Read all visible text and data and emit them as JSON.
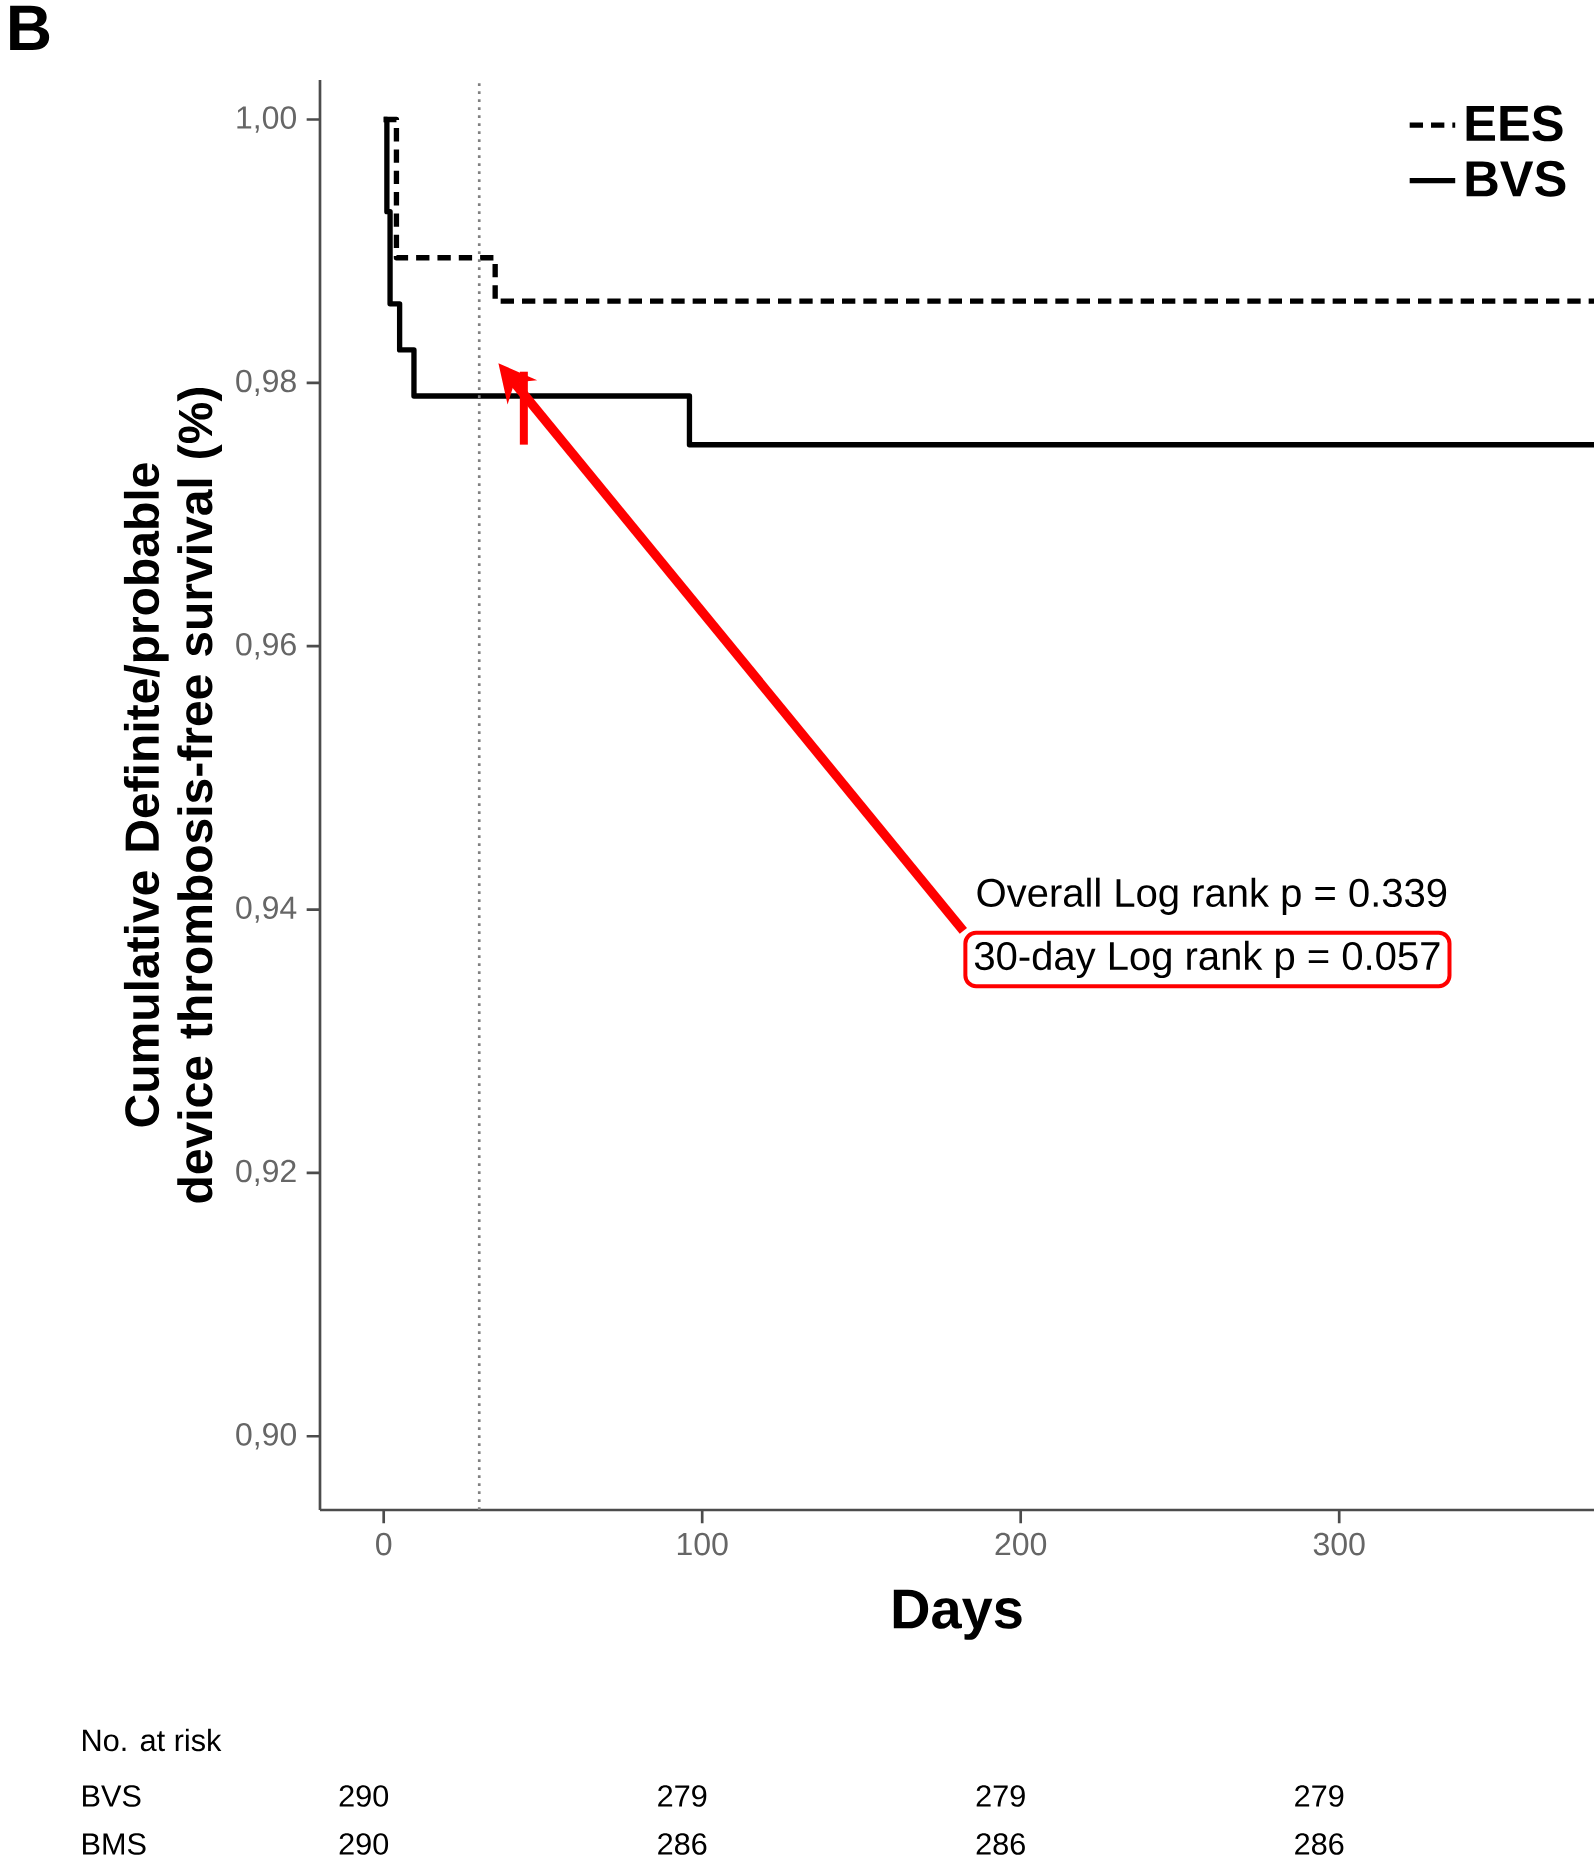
{
  "chart_data": {
    "type": "step",
    "title": "B",
    "xlabel": "Days",
    "ylabel": "Cumulative Definite/probable device thrombosis-free survival (%)",
    "series": [
      {
        "name": "EES",
        "color": "#000000",
        "line_style": "dashed",
        "x": [
          0,
          4,
          35,
          380
        ],
        "values": [
          1.0,
          0.9895,
          0.9862,
          0.9862
        ]
      },
      {
        "name": "BVS",
        "color": "#000000",
        "line_style": "solid",
        "x": [
          0,
          1,
          2,
          5,
          9.5,
          96,
          380
        ],
        "values": [
          1.0,
          0.993,
          0.986,
          0.9825,
          0.979,
          0.9753,
          0.9753
        ]
      }
    ],
    "xlim": [
      -20,
      380
    ],
    "ylim": [
      0.8944,
      1.003
    ],
    "xticks": [
      0,
      100,
      200,
      300
    ],
    "yticks": [
      {
        "value": 0.9,
        "label": "0,90"
      },
      {
        "value": 0.92,
        "label": "0,92"
      },
      {
        "value": 0.94,
        "label": "0,94"
      },
      {
        "value": 0.96,
        "label": "0,96"
      },
      {
        "value": 0.98,
        "label": "0,98"
      },
      {
        "value": 1.0,
        "label": "1,00"
      }
    ],
    "ref_lines": [
      {
        "axis": "x",
        "value": 30,
        "color": "#808080",
        "line_style": "dotted"
      }
    ],
    "legend": "top right",
    "grid": false,
    "marker": "none",
    "annotations": [
      "Overall Log rank p = 0.339",
      "30-day Log rank p = 0.057",
      "No. at risk",
      "BVS",
      "290",
      "279",
      "279",
      "279",
      "BMS",
      "290",
      "286",
      "286",
      "286"
    ]
  }
}
